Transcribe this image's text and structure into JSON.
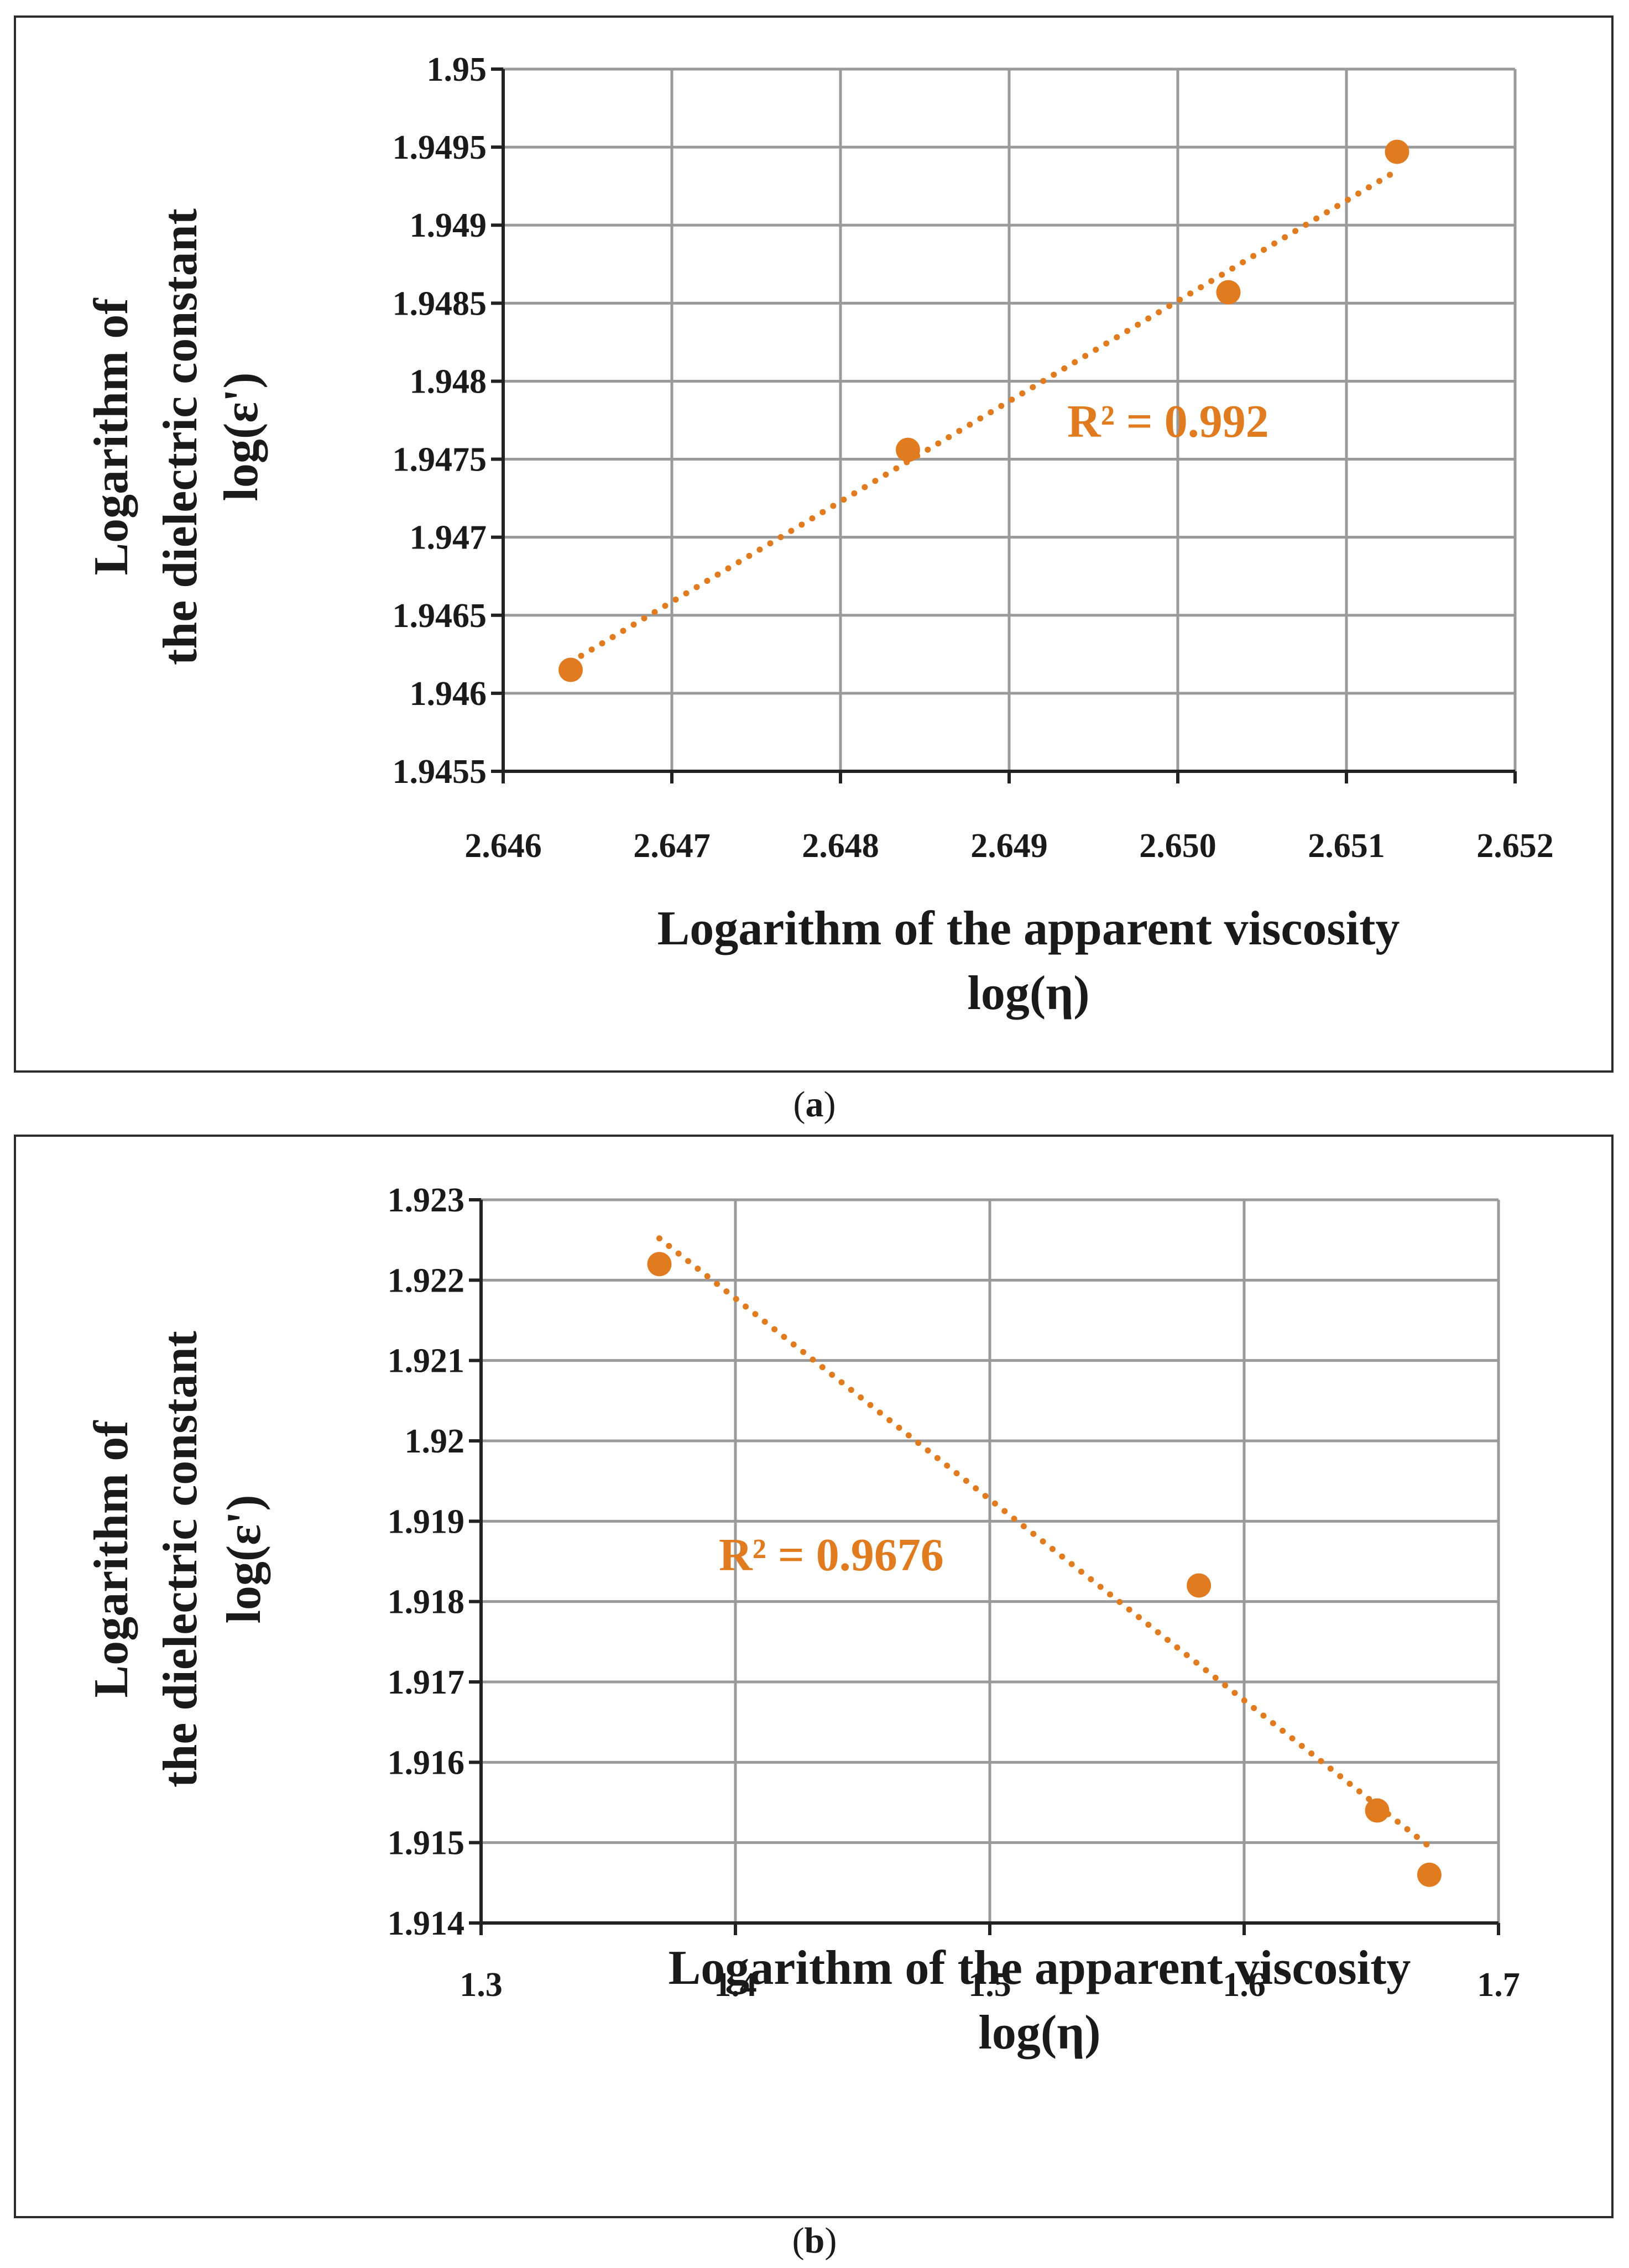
{
  "chart_data": [
    {
      "type": "scatter",
      "panel": "a",
      "x": [
        2.6464,
        2.6484,
        2.6503,
        2.6513
      ],
      "y": [
        1.94615,
        1.94756,
        1.94857,
        1.94947
      ],
      "trendline": {
        "type": "linear",
        "x_range": [
          2.6464,
          2.6513
        ],
        "y_range": [
          1.9462,
          1.94935
        ]
      },
      "r2_label": "R² = 0.992",
      "xlim": [
        2.646,
        2.652
      ],
      "ylim": [
        1.9455,
        1.95
      ],
      "xticks": [
        "2.646",
        "2.647",
        "2.648",
        "2.649",
        "2.650",
        "2.651",
        "2.652"
      ],
      "yticks": [
        "1.9455",
        "1.946",
        "1.9465",
        "1.947",
        "1.9475",
        "1.948",
        "1.9485",
        "1.949",
        "1.9495",
        "1.95"
      ],
      "xlabel_line1": "Logarithm of the apparent viscosity",
      "xlabel_line2": "log(η)",
      "ylabel_line1": "Logarithm of",
      "ylabel_line2": "the dielectric constant",
      "ylabel_line3": "log(ε')",
      "caption": "a",
      "color": "#E07B20"
    },
    {
      "type": "scatter",
      "panel": "b",
      "x": [
        1.3701,
        1.5822,
        1.6523,
        1.6728
      ],
      "y": [
        1.9222,
        1.9182,
        1.9154,
        1.9146
      ],
      "trendline": {
        "type": "linear",
        "x_range": [
          1.3701,
          1.6728
        ],
        "y_range": [
          1.92252,
          1.91495
        ]
      },
      "r2_label": "R² = 0.9676",
      "xlim": [
        1.3,
        1.7
      ],
      "ylim": [
        1.914,
        1.923
      ],
      "xticks": [
        "1.3",
        "1.4",
        "1.5",
        "1.6",
        "1.7"
      ],
      "yticks": [
        "1.914",
        "1.915",
        "1.916",
        "1.917",
        "1.918",
        "1.919",
        "1.92",
        "1.921",
        "1.922",
        "1.923"
      ],
      "xlabel_line1": "Logarithm of the apparent viscosity",
      "xlabel_line2": "log(η)",
      "ylabel_line1": "Logarithm of",
      "ylabel_line2": "the dielectric constant",
      "ylabel_line3": "log(ε')",
      "caption": "b",
      "color": "#E07B20"
    }
  ]
}
